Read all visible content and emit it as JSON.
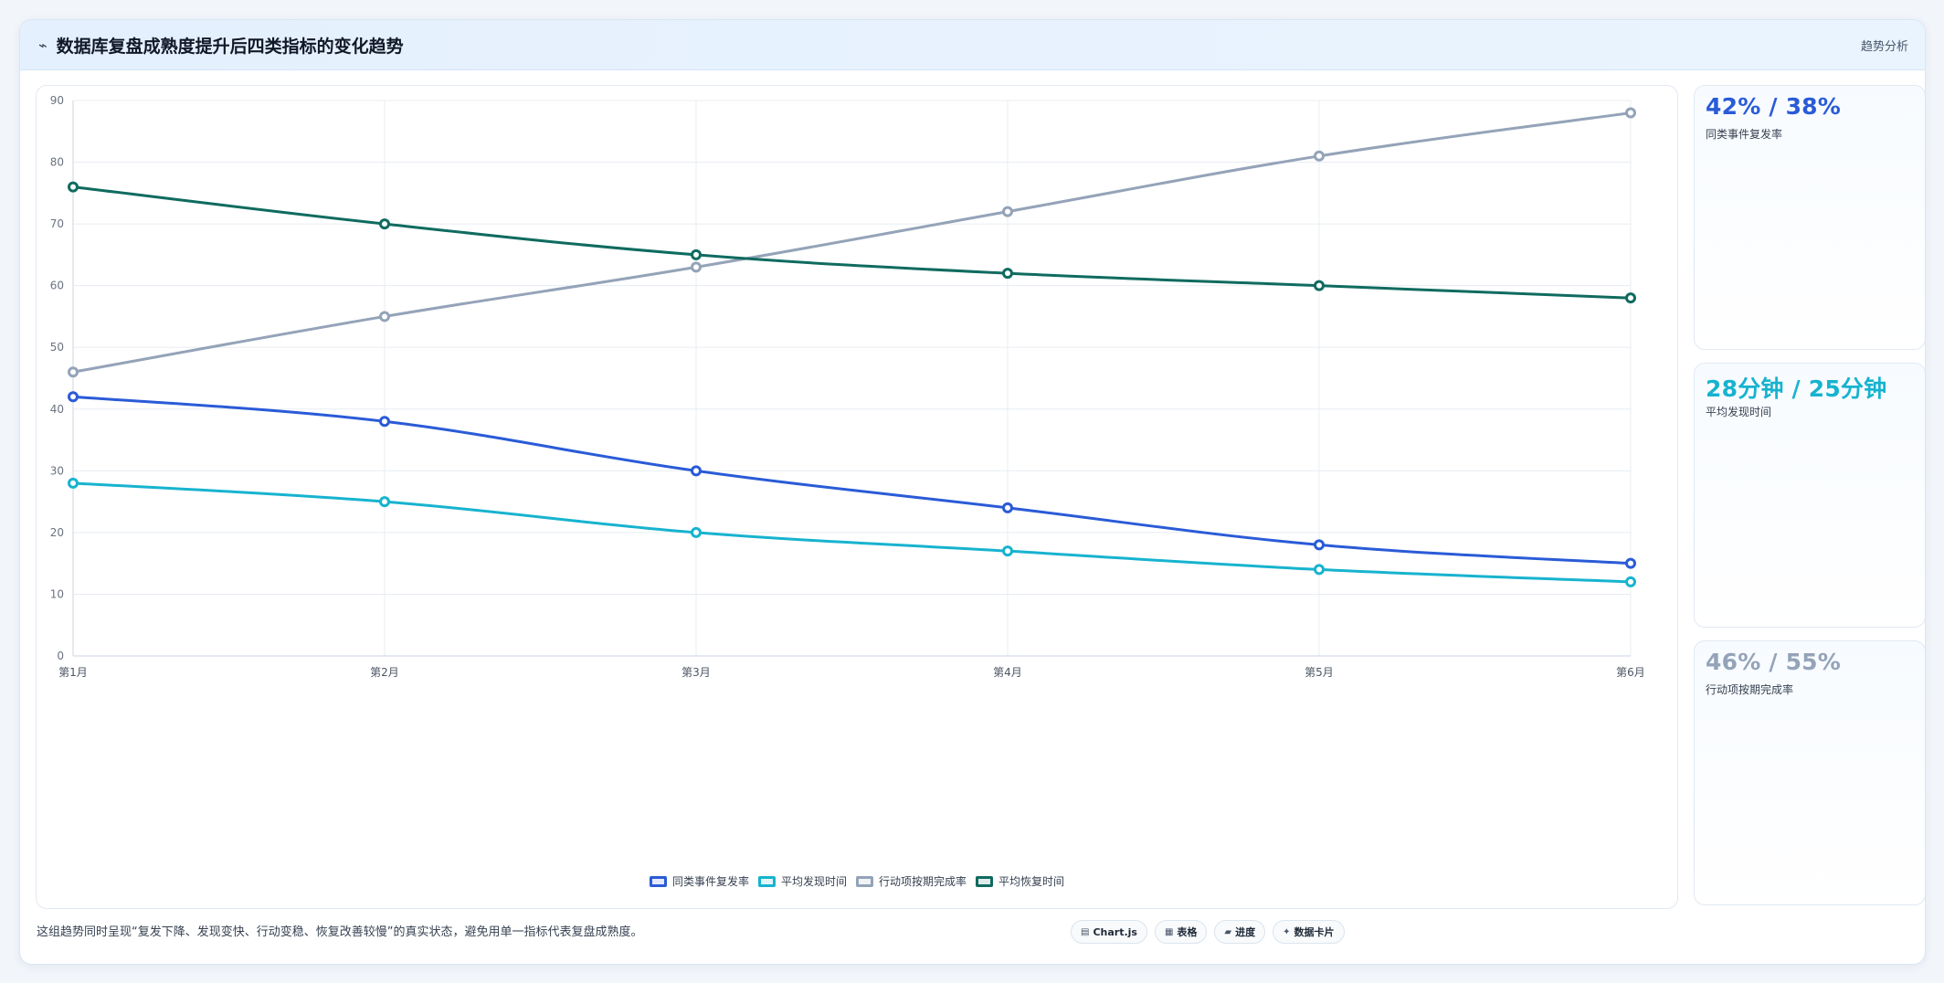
{
  "header": {
    "icon": "trend-icon",
    "title": "数据库复盘成熟度提升后四类指标的变化趋势",
    "tag": "趋势分析"
  },
  "chart_data": {
    "type": "line",
    "title": "",
    "xlabel": "",
    "ylabel": "",
    "categories": [
      "第1月",
      "第2月",
      "第3月",
      "第4月",
      "第5月",
      "第6月"
    ],
    "ylim": [
      0,
      90
    ],
    "yticks": [
      0,
      10,
      20,
      30,
      40,
      50,
      60,
      70,
      80,
      90
    ],
    "grid": true,
    "legend_position": "bottom",
    "series": [
      {
        "name": "同类事件复发率",
        "color": "#2a5bd7",
        "values": [
          42,
          38,
          30,
          24,
          18,
          15
        ]
      },
      {
        "name": "平均发现时间",
        "color": "#17b3cf",
        "values": [
          28,
          25,
          20,
          17,
          14,
          12
        ]
      },
      {
        "name": "行动项按期完成率",
        "color": "#94a3b8",
        "values": [
          46,
          55,
          63,
          72,
          81,
          88
        ]
      },
      {
        "name": "平均恢复时间",
        "color": "#0f6b5f",
        "values": [
          76,
          70,
          65,
          62,
          60,
          58
        ]
      }
    ]
  },
  "kpis": [
    {
      "value": "42% / 38%",
      "label": "同类事件复发率",
      "color": "#2a5bd7"
    },
    {
      "value": "28分钟 / 25分钟",
      "label": "平均发现时间",
      "color": "#17b3cf"
    },
    {
      "value": "46% / 55%",
      "label": "行动项按期完成率",
      "color": "#94a3b8"
    }
  ],
  "footer": {
    "note": "这组趋势同时呈现“复发下降、发现变快、行动变稳、恢复改善较慢”的真实状态，避免用单一指标代表复盘成熟度。",
    "pills": [
      {
        "icon": "chart-icon",
        "glyph": "▤",
        "label": "Chart.js"
      },
      {
        "icon": "table-icon",
        "glyph": "▦",
        "label": "表格"
      },
      {
        "icon": "progress-icon",
        "glyph": "▰",
        "label": "进度"
      },
      {
        "icon": "data-card-icon",
        "glyph": "✦",
        "label": "数据卡片"
      }
    ]
  }
}
